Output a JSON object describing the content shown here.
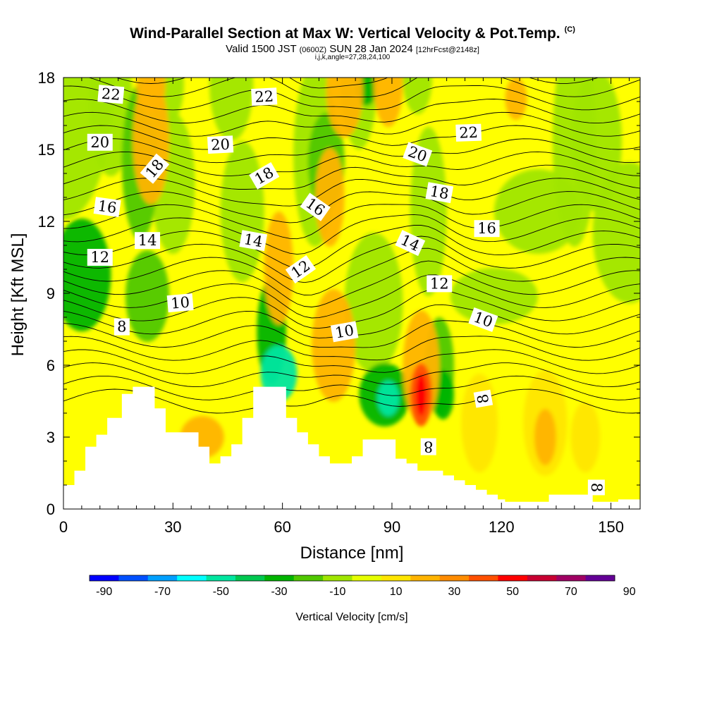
{
  "header": {
    "title": "Wind-Parallel Section at Max W: Vertical Velocity & Pot.Temp.",
    "copyright": "(C)",
    "subtitle_main": "Valid 1500 JST",
    "subtitle_utc": "(0600Z)",
    "subtitle_date": "SUN 28 Jan 2024",
    "subtitle_fcst": "[12hrFcst@2148z]",
    "info": "i,j,k,angle=27,28,24,100"
  },
  "chart_data": {
    "type": "heatmap",
    "title": "Wind-Parallel Section at Max W: Vertical Velocity & Pot.Temp.",
    "xlabel": "Distance [nm]",
    "ylabel": "Height [Kft MSL]",
    "xlim": [
      0,
      158
    ],
    "ylim": [
      0,
      18
    ],
    "x_ticks": [
      "0",
      "30",
      "60",
      "90",
      "120",
      "150"
    ],
    "y_ticks": [
      "0",
      "3",
      "6",
      "9",
      "12",
      "15",
      "18"
    ],
    "colorbar": {
      "title": "Vertical Velocity [cm/s]",
      "tick_labels": [
        "-90",
        "-70",
        "-50",
        "-30",
        "-10",
        "10",
        "30",
        "50",
        "70",
        "90"
      ],
      "colors": [
        "#0000ff",
        "#0050ff",
        "#00a0ff",
        "#00ffff",
        "#00e6a0",
        "#00c850",
        "#00b400",
        "#50c800",
        "#a0e600",
        "#e6ff00",
        "#ffe600",
        "#ffb400",
        "#ff8c00",
        "#ff5000",
        "#ff0000",
        "#c80032",
        "#a00064",
        "#640096"
      ]
    },
    "terrain": [
      [
        0,
        1
      ],
      [
        3,
        1
      ],
      [
        3,
        1.6
      ],
      [
        6,
        1.6
      ],
      [
        6,
        2.6
      ],
      [
        9,
        2.6
      ],
      [
        9,
        3.1
      ],
      [
        12,
        3.1
      ],
      [
        12,
        3.8
      ],
      [
        16,
        3.8
      ],
      [
        16,
        4.8
      ],
      [
        19,
        4.8
      ],
      [
        19,
        5.1
      ],
      [
        25,
        5.1
      ],
      [
        25,
        4.2
      ],
      [
        28,
        4.2
      ],
      [
        28,
        3.2
      ],
      [
        37,
        3.2
      ],
      [
        37,
        2.6
      ],
      [
        40,
        2.6
      ],
      [
        40,
        1.9
      ],
      [
        43,
        1.9
      ],
      [
        43,
        2.2
      ],
      [
        46,
        2.2
      ],
      [
        46,
        2.7
      ],
      [
        49,
        2.7
      ],
      [
        49,
        3.8
      ],
      [
        52,
        3.8
      ],
      [
        52,
        5.1
      ],
      [
        61,
        5.1
      ],
      [
        61,
        3.8
      ],
      [
        64,
        3.8
      ],
      [
        64,
        3.2
      ],
      [
        67,
        3.2
      ],
      [
        67,
        2.7
      ],
      [
        70,
        2.7
      ],
      [
        70,
        2.2
      ],
      [
        73,
        2.2
      ],
      [
        73,
        1.9
      ],
      [
        79,
        1.9
      ],
      [
        79,
        2.2
      ],
      [
        82,
        2.2
      ],
      [
        82,
        2.9
      ],
      [
        91,
        2.9
      ],
      [
        91,
        2.1
      ],
      [
        94,
        2.1
      ],
      [
        94,
        1.9
      ],
      [
        97,
        1.9
      ],
      [
        97,
        1.6
      ],
      [
        104,
        1.6
      ],
      [
        104,
        1.4
      ],
      [
        107,
        1.4
      ],
      [
        107,
        1.2
      ],
      [
        110,
        1.2
      ],
      [
        110,
        1.0
      ],
      [
        113,
        1.0
      ],
      [
        113,
        0.8
      ],
      [
        116,
        0.8
      ],
      [
        116,
        0.6
      ],
      [
        119,
        0.6
      ],
      [
        119,
        0.4
      ],
      [
        121,
        0.4
      ],
      [
        121,
        0.3
      ],
      [
        127,
        0.3
      ],
      [
        127,
        0.3
      ],
      [
        133,
        0.3
      ],
      [
        133,
        0.6
      ],
      [
        145,
        0.6
      ],
      [
        145,
        0.3
      ],
      [
        152,
        0.3
      ],
      [
        152,
        0.4
      ],
      [
        158,
        0.4
      ]
    ],
    "contour_labels": [
      {
        "text": "22",
        "x": 13,
        "y": 17.3,
        "angle": 5
      },
      {
        "text": "22",
        "x": 55,
        "y": 17.2,
        "angle": -3
      },
      {
        "text": "22",
        "x": 111,
        "y": 15.7,
        "angle": -2
      },
      {
        "text": "20",
        "x": 10,
        "y": 15.3,
        "angle": 0
      },
      {
        "text": "20",
        "x": 43,
        "y": 15.2,
        "angle": -3
      },
      {
        "text": "20",
        "x": 97,
        "y": 14.8,
        "angle": 20
      },
      {
        "text": "18",
        "x": 25,
        "y": 14.2,
        "angle": -50
      },
      {
        "text": "18",
        "x": 55,
        "y": 13.9,
        "angle": -30
      },
      {
        "text": "18",
        "x": 103,
        "y": 13.2,
        "angle": 10
      },
      {
        "text": "16",
        "x": 12,
        "y": 12.6,
        "angle": 8
      },
      {
        "text": "16",
        "x": 69,
        "y": 12.6,
        "angle": 35
      },
      {
        "text": "16",
        "x": 116,
        "y": 11.7,
        "angle": 0
      },
      {
        "text": "14",
        "x": 23,
        "y": 11.2,
        "angle": 0
      },
      {
        "text": "14",
        "x": 52,
        "y": 11.2,
        "angle": 10
      },
      {
        "text": "14",
        "x": 95,
        "y": 11.1,
        "angle": 25
      },
      {
        "text": "12",
        "x": 10,
        "y": 10.5,
        "angle": 0
      },
      {
        "text": "12",
        "x": 65,
        "y": 10.0,
        "angle": -35
      },
      {
        "text": "12",
        "x": 103,
        "y": 9.4,
        "angle": 0
      },
      {
        "text": "10",
        "x": 32,
        "y": 8.6,
        "angle": -5
      },
      {
        "text": "10",
        "x": 77,
        "y": 7.4,
        "angle": -10
      },
      {
        "text": "10",
        "x": 115,
        "y": 7.9,
        "angle": 20
      },
      {
        "text": "8",
        "x": 16,
        "y": 7.6,
        "angle": 0
      },
      {
        "text": "8",
        "x": 115,
        "y": 4.6,
        "angle": -100
      },
      {
        "text": "8",
        "x": 100,
        "y": 2.6,
        "angle": 180
      },
      {
        "text": "8",
        "x": 146,
        "y": 0.9,
        "angle": 90
      }
    ]
  }
}
